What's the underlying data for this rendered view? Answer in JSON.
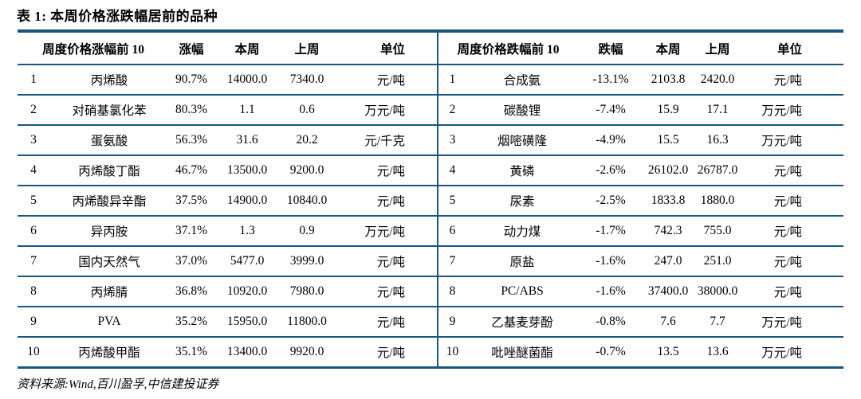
{
  "title": "表 1: 本周价格涨跌幅居前的品种",
  "source_note": "资料来源:Wind,百川盈孚,中信建投证券",
  "colors": {
    "rule": "#19567F",
    "text": "#000000",
    "background": "#FFFFFF"
  },
  "tables": [
    {
      "group_header": "周度价格涨幅前 10",
      "columns": [
        "涨幅",
        "本周",
        "上周",
        "单位"
      ],
      "rows": [
        {
          "rank": "1",
          "name": "丙烯酸",
          "pct": "90.7%",
          "week": "14000.0",
          "prev": "7340.0",
          "unit": "元/吨"
        },
        {
          "rank": "2",
          "name": "对硝基氯化苯",
          "pct": "80.3%",
          "week": "1.1",
          "prev": "0.6",
          "unit": "万元/吨"
        },
        {
          "rank": "3",
          "name": "蛋氨酸",
          "pct": "56.3%",
          "week": "31.6",
          "prev": "20.2",
          "unit": "元/千克"
        },
        {
          "rank": "4",
          "name": "丙烯酸丁酯",
          "pct": "46.7%",
          "week": "13500.0",
          "prev": "9200.0",
          "unit": "元/吨"
        },
        {
          "rank": "5",
          "name": "丙烯酸异辛酯",
          "pct": "37.5%",
          "week": "14900.0",
          "prev": "10840.0",
          "unit": "元/吨"
        },
        {
          "rank": "6",
          "name": "异丙胺",
          "pct": "37.1%",
          "week": "1.3",
          "prev": "0.9",
          "unit": "万元/吨"
        },
        {
          "rank": "7",
          "name": "国内天然气",
          "pct": "37.0%",
          "week": "5477.0",
          "prev": "3999.0",
          "unit": "元/吨"
        },
        {
          "rank": "8",
          "name": "丙烯腈",
          "pct": "36.8%",
          "week": "10920.0",
          "prev": "7980.0",
          "unit": "元/吨"
        },
        {
          "rank": "9",
          "name": "PVA",
          "pct": "35.2%",
          "week": "15950.0",
          "prev": "11800.0",
          "unit": "元/吨"
        },
        {
          "rank": "10",
          "name": "丙烯酸甲酯",
          "pct": "35.1%",
          "week": "13400.0",
          "prev": "9920.0",
          "unit": "元/吨"
        }
      ]
    },
    {
      "group_header": "周度价格跌幅前 10",
      "columns": [
        "跌幅",
        "本周",
        "上周",
        "单位"
      ],
      "rows": [
        {
          "rank": "1",
          "name": "合成氨",
          "pct": "-13.1%",
          "week": "2103.8",
          "prev": "2420.0",
          "unit": "元/吨"
        },
        {
          "rank": "2",
          "name": "碳酸锂",
          "pct": "-7.4%",
          "week": "15.9",
          "prev": "17.1",
          "unit": "万元/吨"
        },
        {
          "rank": "3",
          "name": "烟嘧磺隆",
          "pct": "-4.9%",
          "week": "15.5",
          "prev": "16.3",
          "unit": "万元/吨"
        },
        {
          "rank": "4",
          "name": "黄磷",
          "pct": "-2.6%",
          "week": "26102.0",
          "prev": "26787.0",
          "unit": "元/吨"
        },
        {
          "rank": "5",
          "name": "尿素",
          "pct": "-2.5%",
          "week": "1833.8",
          "prev": "1880.0",
          "unit": "元/吨"
        },
        {
          "rank": "6",
          "name": "动力煤",
          "pct": "-1.7%",
          "week": "742.3",
          "prev": "755.0",
          "unit": "元/吨"
        },
        {
          "rank": "7",
          "name": "原盐",
          "pct": "-1.6%",
          "week": "247.0",
          "prev": "251.0",
          "unit": "元/吨"
        },
        {
          "rank": "8",
          "name": "PC/ABS",
          "pct": "-1.6%",
          "week": "37400.0",
          "prev": "38000.0",
          "unit": "元/吨"
        },
        {
          "rank": "9",
          "name": "乙基麦芽酚",
          "pct": "-0.8%",
          "week": "7.6",
          "prev": "7.7",
          "unit": "万元/吨"
        },
        {
          "rank": "10",
          "name": "吡唑醚菌酯",
          "pct": "-0.7%",
          "week": "13.5",
          "prev": "13.6",
          "unit": "万元/吨"
        }
      ]
    }
  ]
}
